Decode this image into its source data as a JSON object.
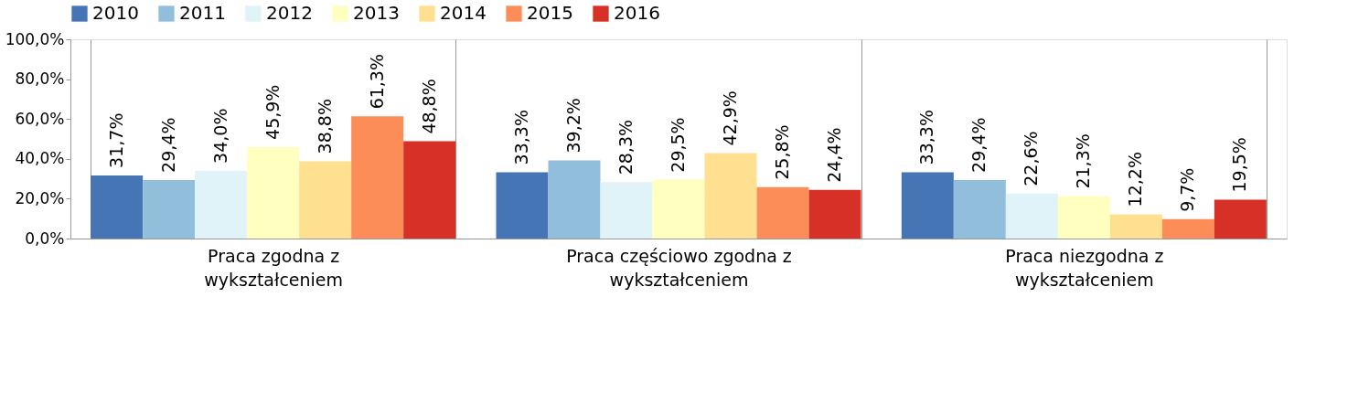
{
  "chart_data": {
    "type": "bar",
    "categories": [
      "Praca zgodna z wykształceniem",
      "Praca częściowo zgodna z wykształceniem",
      "Praca niezgodna z wykształceniem"
    ],
    "series": [
      {
        "name": "2010",
        "color": "#4575b4",
        "values": [
          31.7,
          33.3,
          33.3
        ],
        "value_labels": [
          "31,7%",
          "33,3%",
          "33,3%"
        ]
      },
      {
        "name": "2011",
        "color": "#91bfdb",
        "values": [
          29.4,
          39.2,
          29.4
        ],
        "value_labels": [
          "29,4%",
          "39,2%",
          "29,4%"
        ]
      },
      {
        "name": "2012",
        "color": "#e0f3f8",
        "values": [
          34.0,
          28.3,
          22.6
        ],
        "value_labels": [
          "34,0%",
          "28,3%",
          "22,6%"
        ]
      },
      {
        "name": "2013",
        "color": "#ffffbf",
        "values": [
          45.9,
          29.5,
          21.3
        ],
        "value_labels": [
          "45,9%",
          "29,5%",
          "21,3%"
        ]
      },
      {
        "name": "2014",
        "color": "#fee090",
        "values": [
          38.8,
          42.9,
          12.2
        ],
        "value_labels": [
          "38,8%",
          "42,9%",
          "12,2%"
        ]
      },
      {
        "name": "2015",
        "color": "#fc8d59",
        "values": [
          61.3,
          25.8,
          9.7
        ],
        "value_labels": [
          "61,3%",
          "25,8%",
          "9,7%"
        ]
      },
      {
        "name": "2016",
        "color": "#d73027",
        "values": [
          48.8,
          24.4,
          19.5
        ],
        "value_labels": [
          "48,8%",
          "24,4%",
          "19,5%"
        ]
      }
    ],
    "ylim": [
      0,
      100
    ],
    "yticks": [
      {
        "value": 0,
        "label": "0,0%"
      },
      {
        "value": 20,
        "label": "20,0%"
      },
      {
        "value": 40,
        "label": "40,0%"
      },
      {
        "value": 60,
        "label": "60,0%"
      },
      {
        "value": 80,
        "label": "80,0%"
      },
      {
        "value": 100,
        "label": "100,0%"
      }
    ],
    "legend": "top",
    "grid": false
  }
}
